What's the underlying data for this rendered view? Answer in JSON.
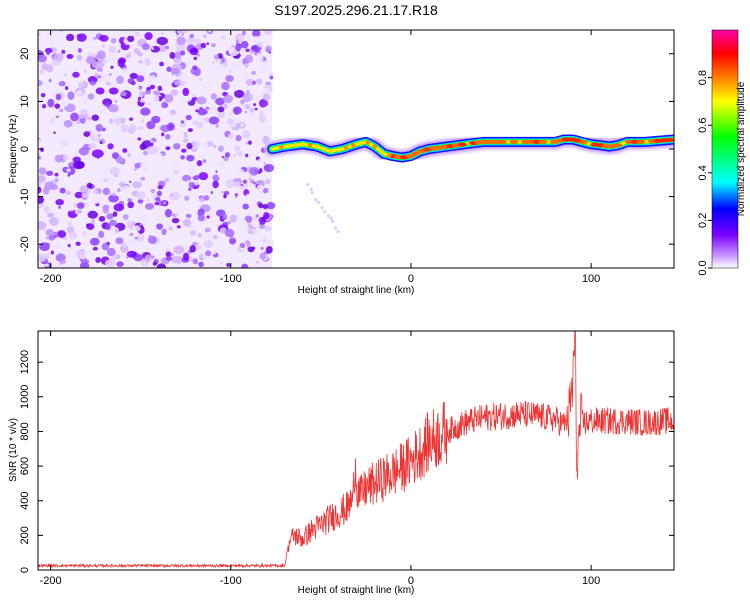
{
  "title": "S197.2025.296.21.17.R18",
  "chart_data": [
    {
      "type": "heatmap",
      "title": "S197.2025.296.21.17.R18",
      "xlabel": "Height of straight line (km)",
      "ylabel": "Frequency (Hz)",
      "xlim": [
        -207,
        146
      ],
      "ylim": [
        -25,
        25
      ],
      "xticks": [
        "-200",
        "-100",
        "0",
        "100"
      ],
      "xtick_values": [
        -200,
        -100,
        0,
        100
      ],
      "yticks": [
        "-20",
        "-10",
        "0",
        "10",
        "20"
      ],
      "ytick_values": [
        -20,
        -10,
        0,
        10,
        20
      ],
      "noise_region_x": [
        -207,
        -77
      ],
      "signal_track": {
        "x": [
          -77,
          -70,
          -60,
          -52,
          -45,
          -38,
          -30,
          -25,
          -20,
          -15,
          -10,
          -5,
          0,
          5,
          10,
          20,
          30,
          40,
          50,
          60,
          70,
          80,
          85,
          90,
          95,
          100,
          105,
          110,
          115,
          120,
          130,
          140,
          146
        ],
        "y": [
          0.0,
          0.5,
          1.0,
          0.5,
          -0.5,
          0.0,
          1.0,
          1.5,
          0.5,
          -1.0,
          -1.5,
          -1.8,
          -1.5,
          -0.5,
          0.0,
          0.5,
          1.0,
          1.5,
          1.5,
          1.5,
          1.5,
          1.5,
          2.0,
          2.0,
          1.5,
          1.0,
          0.8,
          0.5,
          0.8,
          1.5,
          1.5,
          1.8,
          2.0
        ]
      },
      "colorbar": {
        "label": "Normalized spectral amplitude",
        "range": [
          0,
          1
        ],
        "ticks": [
          "0.0",
          "0.2",
          "0.4",
          "0.6",
          "0.8"
        ],
        "tick_values": [
          0.0,
          0.2,
          0.4,
          0.6,
          0.8
        ],
        "colors": [
          "#ffffff",
          "#cc99ff",
          "#7a00ff",
          "#0000ff",
          "#00ffff",
          "#00ff00",
          "#ffff00",
          "#ff7f00",
          "#ff0000",
          "#ff00aa"
        ]
      }
    },
    {
      "type": "line",
      "xlabel": "Height of straight line (km)",
      "ylabel": "SNR (10 * v/v)",
      "xlim": [
        -207,
        146
      ],
      "ylim": [
        0,
        1380
      ],
      "xticks": [
        "-200",
        "-100",
        "0",
        "100"
      ],
      "xtick_values": [
        -200,
        -100,
        0,
        100
      ],
      "yticks": [
        "0",
        "200",
        "400",
        "600",
        "800",
        "1000",
        "1200"
      ],
      "ytick_values": [
        0,
        200,
        400,
        600,
        800,
        1000,
        1200
      ],
      "series": [
        {
          "name": "SNR",
          "color": "#ee3333",
          "x": [
            -207,
            -180,
            -150,
            -120,
            -90,
            -70,
            -68,
            -65,
            -60,
            -55,
            -50,
            -45,
            -40,
            -35,
            -32,
            -31,
            -30,
            -28,
            -25,
            -20,
            -15,
            -10,
            -5,
            0,
            5,
            10,
            20,
            30,
            40,
            50,
            60,
            70,
            80,
            85,
            88,
            90,
            91,
            92,
            94,
            96,
            100,
            110,
            120,
            130,
            140,
            146
          ],
          "y": [
            25,
            25,
            25,
            25,
            25,
            25,
            150,
            200,
            180,
            230,
            260,
            300,
            330,
            360,
            420,
            650,
            480,
            430,
            470,
            500,
            530,
            560,
            590,
            630,
            680,
            740,
            800,
            850,
            880,
            890,
            900,
            890,
            870,
            840,
            900,
            1100,
            1380,
            600,
            850,
            850,
            860,
            860,
            860,
            850,
            860,
            860
          ]
        }
      ]
    }
  ]
}
